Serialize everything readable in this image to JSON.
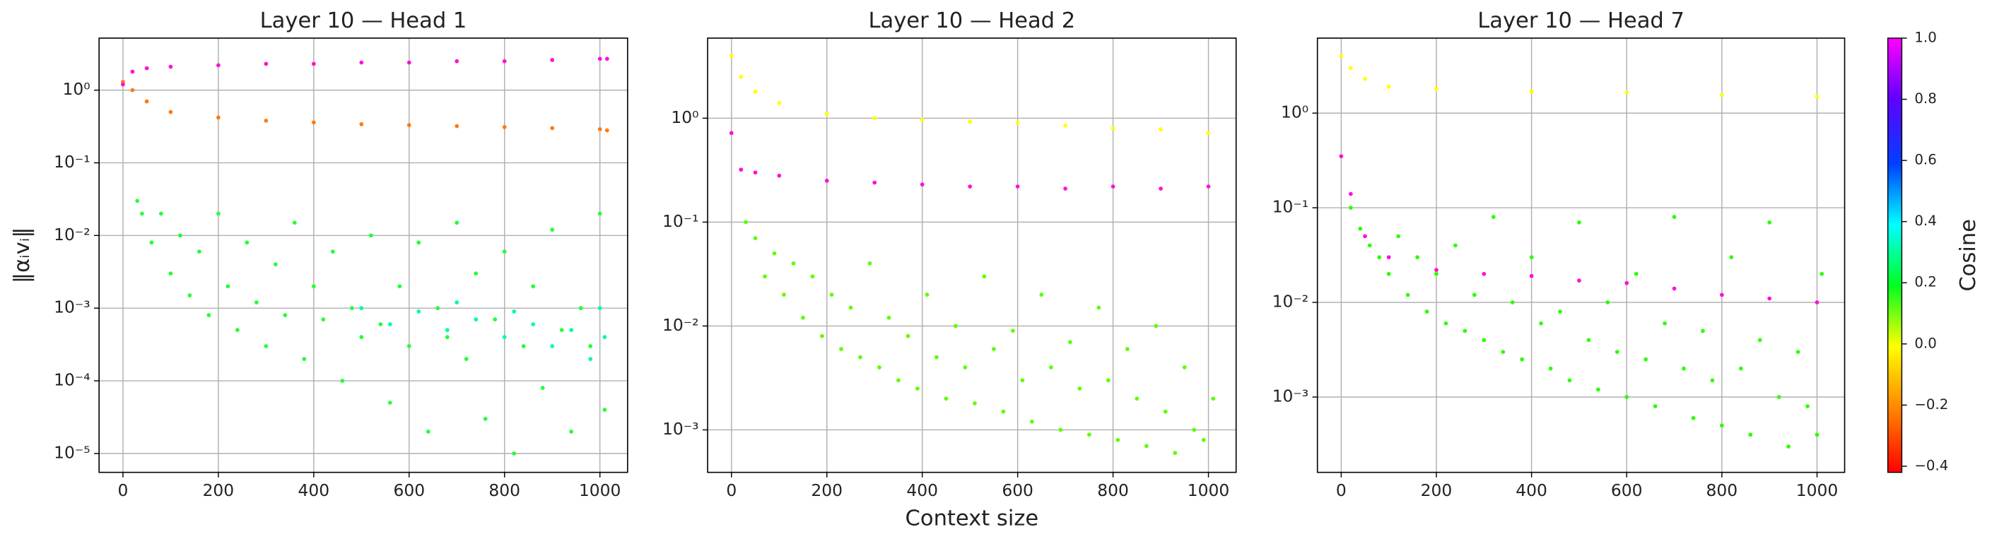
{
  "chart_data": [
    {
      "type": "scatter",
      "title": "Layer 10 — Head 1",
      "ylabel": "‖αᵢvᵢ‖",
      "log_y": true,
      "grid": true,
      "xlim": [
        -50,
        1058
      ],
      "xticks": [
        0,
        200,
        400,
        600,
        800,
        1000
      ],
      "ylim": [
        5.5e-06,
        5.2
      ],
      "yticks": [
        {
          "value": 1e-05,
          "label": "10⁻⁵"
        },
        {
          "value": 0.0001,
          "label": "10⁻⁴"
        },
        {
          "value": 0.001,
          "label": "10⁻³"
        },
        {
          "value": 0.01,
          "label": "10⁻²"
        },
        {
          "value": 0.1,
          "label": "10⁻¹"
        },
        {
          "value": 1,
          "label": "10⁰"
        }
      ],
      "series": [
        {
          "color": "#22ff38",
          "x": [
            30,
            40,
            60,
            80,
            100,
            120,
            140,
            160,
            180,
            200,
            220,
            240,
            260,
            280,
            300,
            320,
            340,
            360,
            380,
            400,
            420,
            440,
            460,
            480,
            500,
            520,
            540,
            560,
            580,
            600,
            620,
            640,
            660,
            680,
            700,
            720,
            740,
            760,
            780,
            800,
            820,
            840,
            860,
            880,
            900,
            920,
            940,
            960,
            980,
            1000,
            1010
          ],
          "values": [
            0.03,
            0.02,
            0.008,
            0.02,
            0.003,
            0.01,
            0.0015,
            0.006,
            0.0008,
            0.02,
            0.002,
            0.0005,
            0.008,
            0.0012,
            0.0003,
            0.004,
            0.0008,
            0.015,
            0.0002,
            0.002,
            0.0007,
            0.006,
            0.0001,
            0.001,
            0.0004,
            0.01,
            0.0006,
            5e-05,
            0.002,
            0.0003,
            0.008,
            2e-05,
            0.001,
            0.0004,
            0.015,
            0.0002,
            0.003,
            3e-05,
            0.0007,
            0.006,
            1e-05,
            0.0003,
            0.002,
            8e-05,
            0.012,
            0.0005,
            2e-05,
            0.001,
            0.0003,
            0.02,
            4e-05
          ]
        },
        {
          "color": "#00ff9c",
          "x": [
            500,
            560,
            620,
            680,
            700,
            740,
            800,
            820,
            860,
            900,
            940,
            980,
            1000,
            1010
          ],
          "values": [
            0.001,
            0.0006,
            0.0009,
            0.0005,
            0.0012,
            0.0007,
            0.0004,
            0.0009,
            0.0006,
            0.0003,
            0.0005,
            0.0002,
            0.001,
            0.0004
          ]
        },
        {
          "color": "#ff7a10",
          "x": [
            0,
            20,
            50,
            100,
            200,
            300,
            400,
            500,
            600,
            700,
            800,
            900,
            1000,
            1015
          ],
          "values": [
            1.3,
            1.0,
            0.7,
            0.5,
            0.42,
            0.38,
            0.36,
            0.34,
            0.33,
            0.32,
            0.31,
            0.3,
            0.29,
            0.28
          ]
        },
        {
          "color": "#ff10d8",
          "x": [
            0,
            20,
            50,
            100,
            200,
            300,
            400,
            500,
            600,
            700,
            800,
            900,
            1000,
            1015
          ],
          "values": [
            1.2,
            1.8,
            2.0,
            2.1,
            2.2,
            2.3,
            2.3,
            2.4,
            2.4,
            2.5,
            2.5,
            2.6,
            2.7,
            2.7
          ]
        }
      ]
    },
    {
      "type": "scatter",
      "title": "Layer 10 — Head 2",
      "xlabel": "Context size",
      "log_y": true,
      "grid": true,
      "xlim": [
        -50,
        1058
      ],
      "xticks": [
        0,
        200,
        400,
        600,
        800,
        1000
      ],
      "ylim": [
        0.00039,
        5.9
      ],
      "yticks": [
        {
          "value": 0.001,
          "label": "10⁻³"
        },
        {
          "value": 0.01,
          "label": "10⁻²"
        },
        {
          "value": 0.1,
          "label": "10⁻¹"
        },
        {
          "value": 1,
          "label": "10⁰"
        }
      ],
      "series": [
        {
          "color": "#5cff00",
          "x": [
            30,
            50,
            70,
            90,
            110,
            130,
            150,
            170,
            190,
            210,
            230,
            250,
            270,
            290,
            310,
            330,
            350,
            370,
            390,
            410,
            430,
            450,
            470,
            490,
            510,
            530,
            550,
            570,
            590,
            610,
            630,
            650,
            670,
            690,
            710,
            730,
            750,
            770,
            790,
            810,
            830,
            850,
            870,
            890,
            910,
            930,
            950,
            970,
            990,
            1010
          ],
          "values": [
            0.1,
            0.07,
            0.03,
            0.05,
            0.02,
            0.04,
            0.012,
            0.03,
            0.008,
            0.02,
            0.006,
            0.015,
            0.005,
            0.04,
            0.004,
            0.012,
            0.003,
            0.008,
            0.0025,
            0.02,
            0.005,
            0.002,
            0.01,
            0.004,
            0.0018,
            0.03,
            0.006,
            0.0015,
            0.009,
            0.003,
            0.0012,
            0.02,
            0.004,
            0.001,
            0.007,
            0.0025,
            0.0009,
            0.015,
            0.003,
            0.0008,
            0.006,
            0.002,
            0.0007,
            0.01,
            0.0015,
            0.0006,
            0.004,
            0.001,
            0.0008,
            0.002
          ]
        },
        {
          "color": "#ff10d8",
          "x": [
            0,
            20,
            50,
            100,
            200,
            300,
            400,
            500,
            600,
            700,
            800,
            900,
            1000
          ],
          "values": [
            0.72,
            0.32,
            0.3,
            0.28,
            0.25,
            0.24,
            0.23,
            0.22,
            0.22,
            0.21,
            0.22,
            0.21,
            0.22
          ]
        },
        {
          "color": "#ffff00",
          "x": [
            0,
            20,
            50,
            100,
            200,
            300,
            400,
            500,
            600,
            700,
            800,
            900,
            1000
          ],
          "values": [
            4.0,
            2.5,
            1.8,
            1.4,
            1.1,
            1.0,
            0.97,
            0.93,
            0.9,
            0.85,
            0.8,
            0.78,
            0.72
          ]
        }
      ]
    },
    {
      "type": "scatter",
      "title": "Layer 10 — Head 7",
      "log_y": true,
      "grid": true,
      "xlim": [
        -50,
        1058
      ],
      "xticks": [
        0,
        200,
        400,
        600,
        800,
        1000
      ],
      "ylim": [
        0.00016,
        6.2
      ],
      "yticks": [
        {
          "value": 0.001,
          "label": "10⁻³"
        },
        {
          "value": 0.01,
          "label": "10⁻²"
        },
        {
          "value": 0.1,
          "label": "10⁻¹"
        },
        {
          "value": 1,
          "label": "10⁰"
        }
      ],
      "series": [
        {
          "color": "#2bff00",
          "x": [
            20,
            40,
            60,
            80,
            100,
            120,
            140,
            160,
            180,
            200,
            220,
            240,
            260,
            280,
            300,
            320,
            340,
            360,
            380,
            400,
            420,
            440,
            460,
            480,
            500,
            520,
            540,
            560,
            580,
            600,
            620,
            640,
            660,
            680,
            700,
            720,
            740,
            760,
            780,
            800,
            820,
            840,
            860,
            880,
            900,
            920,
            940,
            960,
            980,
            1000,
            1010
          ],
          "values": [
            0.1,
            0.06,
            0.04,
            0.03,
            0.02,
            0.05,
            0.012,
            0.03,
            0.008,
            0.02,
            0.006,
            0.04,
            0.005,
            0.012,
            0.004,
            0.08,
            0.003,
            0.01,
            0.0025,
            0.03,
            0.006,
            0.002,
            0.008,
            0.0015,
            0.07,
            0.004,
            0.0012,
            0.01,
            0.003,
            0.001,
            0.02,
            0.0025,
            0.0008,
            0.006,
            0.08,
            0.002,
            0.0006,
            0.005,
            0.0015,
            0.0005,
            0.03,
            0.002,
            0.0004,
            0.004,
            0.07,
            0.001,
            0.0003,
            0.003,
            0.0008,
            0.0004,
            0.02
          ]
        },
        {
          "color": "#ff10d8",
          "x": [
            0,
            20,
            50,
            100,
            200,
            300,
            400,
            500,
            600,
            700,
            800,
            900,
            1000
          ],
          "values": [
            0.35,
            0.14,
            0.05,
            0.03,
            0.022,
            0.02,
            0.019,
            0.017,
            0.016,
            0.014,
            0.012,
            0.011,
            0.01
          ]
        },
        {
          "color": "#ffff00",
          "x": [
            0,
            20,
            50,
            100,
            200,
            400,
            600,
            800,
            1000
          ],
          "values": [
            4.0,
            3.0,
            2.3,
            1.9,
            1.8,
            1.7,
            1.65,
            1.55,
            1.5
          ]
        }
      ]
    }
  ],
  "colorbar": {
    "label": "Cosine",
    "lim": [
      -0.42,
      1.0
    ],
    "ticks": [
      {
        "value": -0.4,
        "label": "−0.4"
      },
      {
        "value": -0.2,
        "label": "−0.2"
      },
      {
        "value": 0,
        "label": "0.0"
      },
      {
        "value": 0.2,
        "label": "0.2"
      },
      {
        "value": 0.4,
        "label": "0.4"
      },
      {
        "value": 0.6,
        "label": "0.6"
      },
      {
        "value": 0.8,
        "label": "0.8"
      },
      {
        "value": 1,
        "label": "1.0"
      }
    ]
  }
}
